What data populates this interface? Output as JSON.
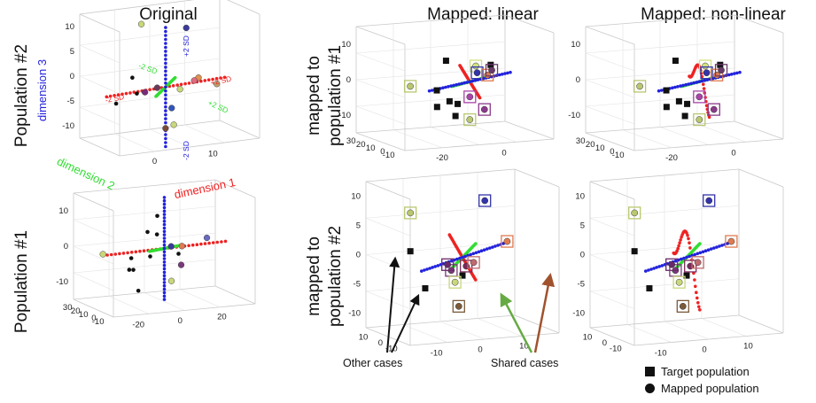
{
  "figure": {
    "column_titles": [
      "Original",
      "Mapped: linear",
      "Mapped: non-linear"
    ],
    "row_labels": [
      "Population #2",
      "Population #1"
    ],
    "mapped_labels": [
      [
        "mapped to",
        "population #1"
      ],
      [
        "mapped to",
        "population #2"
      ]
    ],
    "annotations": {
      "other": "Other cases",
      "shared": "Shared cases"
    },
    "legend": {
      "target": "Target population",
      "mapped": "Mapped population"
    },
    "axis_labels": {
      "dim1": "dimension 1",
      "dim2": "dimension 2",
      "dim3": "dimension 3"
    },
    "sd_labels": {
      "minus": "-2 SD",
      "plus": "+2 SD"
    },
    "colors": {
      "dim1": "#ee2222",
      "dim2": "#33dd33",
      "dim3": "#2222dd",
      "arrow_other": "#111111",
      "arrow_shared_green": "#66aa44",
      "arrow_shared_brown": "#a0522d"
    }
  },
  "chart_data": [
    {
      "type": "scatter",
      "panel": "Original / Population #2",
      "zticks": [
        "10",
        "5",
        "0",
        "-5",
        "-10"
      ],
      "xticks": [
        "0",
        "10"
      ],
      "yticks": [],
      "markers": [
        "circle"
      ],
      "points": [
        {
          "x": -6,
          "y": 8,
          "z": 9,
          "color": "#c8d87a"
        },
        {
          "x": 2,
          "y": 2,
          "z": 8.5,
          "color": "#3a3a9a"
        },
        {
          "x": -14,
          "y": -4,
          "z": 1.5,
          "color": "#111111"
        },
        {
          "x": -16,
          "y": 0,
          "z": -4,
          "color": "#111111"
        },
        {
          "x": -10,
          "y": 2,
          "z": -3,
          "color": "#111111"
        },
        {
          "x": -9,
          "y": 0,
          "z": -2.5,
          "color": "#7a2a7a"
        },
        {
          "x": -7,
          "y": -2,
          "z": -1.5,
          "color": "#6a3a5a"
        },
        {
          "x": 4,
          "y": 0,
          "z": -1,
          "color": "#e09050"
        },
        {
          "x": 7,
          "y": -3,
          "z": -2,
          "color": "#c0a070"
        },
        {
          "x": 2,
          "y": -2,
          "z": -1,
          "color": "#e06a80"
        },
        {
          "x": 0,
          "y": 1,
          "z": -3,
          "color": "#c8d87a"
        },
        {
          "x": -3,
          "y": -1,
          "z": -6,
          "color": "#3355bb"
        },
        {
          "x": -4,
          "y": 0,
          "z": -10,
          "color": "#7a4a3a"
        },
        {
          "x": -2,
          "y": 0,
          "z": -9.5,
          "color": "#c8d87a"
        }
      ]
    },
    {
      "type": "scatter",
      "panel": "Mapped: linear / mapped to population #1",
      "zticks": [
        "10",
        "0",
        "-10"
      ],
      "xticks": [
        "-20",
        "0"
      ],
      "yticks": [
        "30",
        "20",
        "10",
        "0",
        "-10"
      ],
      "markers": [
        "square",
        "circle"
      ],
      "points": [
        {
          "x": -20,
          "y": 0,
          "z": 0,
          "color": "#b8c870",
          "box": true
        },
        {
          "x": -8,
          "y": 0,
          "z": 6,
          "color": "#111111"
        },
        {
          "x": -10,
          "y": 2,
          "z": -2,
          "color": "#111111"
        },
        {
          "x": -11,
          "y": 0,
          "z": -6,
          "color": "#111111"
        },
        {
          "x": -9,
          "y": -4,
          "z": -4,
          "color": "#111111"
        },
        {
          "x": -7,
          "y": -4,
          "z": -8,
          "color": "#111111"
        },
        {
          "x": -3,
          "y": 2,
          "z": -6,
          "color": "#111111"
        },
        {
          "x": 2,
          "y": 0,
          "z": 4,
          "color": "#d0e080",
          "box": true
        },
        {
          "x": 3,
          "y": 1,
          "z": 2,
          "color": "#3333aa",
          "box": true
        },
        {
          "x": 7,
          "y": 0,
          "z": 4,
          "color": "#111111"
        },
        {
          "x": 7,
          "y": 2,
          "z": 1,
          "color": "#e07a50",
          "box": true
        },
        {
          "x": 9,
          "y": 3,
          "z": 2,
          "color": "#6a3a6a",
          "box": true
        },
        {
          "x": 6,
          "y": 2,
          "z": -8,
          "color": "#8a3a8a",
          "box": true
        },
        {
          "x": 0,
          "y": 0,
          "z": -10,
          "color": "#b8c870",
          "box": true
        },
        {
          "x": 0,
          "y": 0,
          "z": -4,
          "color": "#aa44aa",
          "box": true
        }
      ]
    },
    {
      "type": "scatter",
      "panel": "Mapped: non-linear / mapped to population #1",
      "zticks": [
        "10",
        "0",
        "-10"
      ],
      "xticks": [
        "-20",
        "0"
      ],
      "yticks": [
        "30",
        "20",
        "10",
        "0",
        "-10"
      ],
      "markers": [
        "square",
        "circle"
      ],
      "points": [
        {
          "x": -20,
          "y": 0,
          "z": 0,
          "color": "#b8c870",
          "box": true
        },
        {
          "x": -8,
          "y": 0,
          "z": 6,
          "color": "#111111"
        },
        {
          "x": -10,
          "y": 2,
          "z": -2,
          "color": "#111111"
        },
        {
          "x": -11,
          "y": 0,
          "z": -6,
          "color": "#111111"
        },
        {
          "x": -9,
          "y": -4,
          "z": -4,
          "color": "#111111"
        },
        {
          "x": -7,
          "y": -4,
          "z": -8,
          "color": "#111111"
        },
        {
          "x": -3,
          "y": 2,
          "z": -6,
          "color": "#111111"
        },
        {
          "x": 2,
          "y": 0,
          "z": 4,
          "color": "#d0e080",
          "box": true
        },
        {
          "x": 3,
          "y": 1,
          "z": 2,
          "color": "#3333aa",
          "box": true
        },
        {
          "x": 7,
          "y": 0,
          "z": 4,
          "color": "#111111"
        },
        {
          "x": 7,
          "y": 2,
          "z": 1,
          "color": "#e07a50",
          "box": true
        },
        {
          "x": 9,
          "y": 3,
          "z": 2,
          "color": "#6a3a6a",
          "box": true
        },
        {
          "x": 6,
          "y": 2,
          "z": -8,
          "color": "#8a3a8a",
          "box": true
        },
        {
          "x": 0,
          "y": 0,
          "z": -10,
          "color": "#b8c870",
          "box": true
        },
        {
          "x": 0,
          "y": 0,
          "z": -4,
          "color": "#aa44aa",
          "box": true
        }
      ]
    },
    {
      "type": "scatter",
      "panel": "Original / Population #1",
      "zticks": [
        "10",
        "0",
        "-10"
      ],
      "xticks": [
        "-20",
        "0",
        "20"
      ],
      "yticks": [
        "30",
        "20",
        "10",
        "0",
        "-10"
      ],
      "markers": [
        "circle"
      ],
      "points": [
        {
          "x": -26,
          "y": 0,
          "z": 0,
          "color": "#c8d87a"
        },
        {
          "x": -14,
          "y": 0,
          "z": -2,
          "color": "#111111"
        },
        {
          "x": -12,
          "y": 2,
          "z": -6,
          "color": "#111111"
        },
        {
          "x": -16,
          "y": -2,
          "z": -5,
          "color": "#111111"
        },
        {
          "x": -11,
          "y": 0,
          "z": -12,
          "color": "#111111"
        },
        {
          "x": -6,
          "y": 2,
          "z": 5,
          "color": "#111111"
        },
        {
          "x": -2,
          "y": 2,
          "z": 4,
          "color": "#111111"
        },
        {
          "x": -3,
          "y": 0,
          "z": 10,
          "color": "#111111"
        },
        {
          "x": 4,
          "y": 2,
          "z": 0,
          "color": "#3a3a9a"
        },
        {
          "x": 6,
          "y": 0,
          "z": -2,
          "color": "#111111"
        },
        {
          "x": 6,
          "y": -2,
          "z": -5,
          "color": "#7a3a7a"
        },
        {
          "x": 8,
          "y": 1,
          "z": 0,
          "color": "#e07a50"
        },
        {
          "x": 3,
          "y": 0,
          "z": -10,
          "color": "#c8d87a"
        },
        {
          "x": -6,
          "y": 0,
          "z": -2,
          "color": "#111111"
        },
        {
          "x": 18,
          "y": 0,
          "z": 2,
          "color": "#6a6ac0"
        }
      ]
    },
    {
      "type": "scatter",
      "panel": "Mapped: linear / mapped to population #2",
      "zticks": [
        "10",
        "5",
        "0",
        "-5",
        "-10"
      ],
      "xticks": [
        "-10",
        "0",
        "10"
      ],
      "yticks": [
        "10",
        "0",
        "-10"
      ],
      "markers": [
        "square",
        "circle"
      ],
      "points": [
        {
          "x": -14,
          "y": 0,
          "z": 8,
          "color": "#b8c870",
          "box": true
        },
        {
          "x": 6,
          "y": 0,
          "z": 9,
          "color": "#3333aa",
          "box": true
        },
        {
          "x": -15,
          "y": -2,
          "z": 2,
          "color": "#111111"
        },
        {
          "x": -12,
          "y": -4,
          "z": -4,
          "color": "#111111"
        },
        {
          "x": -3,
          "y": 0,
          "z": -2,
          "color": "#7a3a7a",
          "box": true
        },
        {
          "x": -4,
          "y": 0,
          "z": -1,
          "color": "#6a2a6a",
          "box": true
        },
        {
          "x": 1,
          "y": 0,
          "z": -1.5,
          "color": "#7a2a5a",
          "box": true
        },
        {
          "x": 3,
          "y": 0,
          "z": -1,
          "color": "#c06a70",
          "box": true
        },
        {
          "x": 0,
          "y": 0,
          "z": -3,
          "color": "#111111"
        },
        {
          "x": 12,
          "y": 0,
          "z": 2,
          "color": "#e07a50",
          "box": true
        },
        {
          "x": -1,
          "y": 0,
          "z": -8,
          "color": "#7a5a3a",
          "box": true
        },
        {
          "x": -2,
          "y": 0,
          "z": -4,
          "color": "#c8d87a",
          "box": true
        }
      ]
    },
    {
      "type": "scatter",
      "panel": "Mapped: non-linear / mapped to population #2",
      "zticks": [
        "10",
        "5",
        "0",
        "-5",
        "-10"
      ],
      "xticks": [
        "-10",
        "0",
        "10"
      ],
      "yticks": [
        "10",
        "0",
        "-10"
      ],
      "markers": [
        "square",
        "circle"
      ],
      "points": [
        {
          "x": -14,
          "y": 0,
          "z": 8,
          "color": "#b8c870",
          "box": true
        },
        {
          "x": 6,
          "y": 0,
          "z": 9,
          "color": "#3333aa",
          "box": true
        },
        {
          "x": -15,
          "y": -2,
          "z": 2,
          "color": "#111111"
        },
        {
          "x": -12,
          "y": -4,
          "z": -4,
          "color": "#111111"
        },
        {
          "x": -3,
          "y": 0,
          "z": -2,
          "color": "#7a3a7a",
          "box": true
        },
        {
          "x": -4,
          "y": 0,
          "z": -1,
          "color": "#6a2a6a",
          "box": true
        },
        {
          "x": 1,
          "y": 0,
          "z": -1.5,
          "color": "#7a2a5a",
          "box": true
        },
        {
          "x": 3,
          "y": 0,
          "z": -1,
          "color": "#c06a70",
          "box": true
        },
        {
          "x": 0,
          "y": 0,
          "z": -3,
          "color": "#111111"
        },
        {
          "x": 12,
          "y": 0,
          "z": 2,
          "color": "#e07a50",
          "box": true
        },
        {
          "x": -1,
          "y": 0,
          "z": -8,
          "color": "#7a5a3a",
          "box": true
        },
        {
          "x": -2,
          "y": 0,
          "z": -4,
          "color": "#c8d87a",
          "box": true
        }
      ]
    }
  ]
}
